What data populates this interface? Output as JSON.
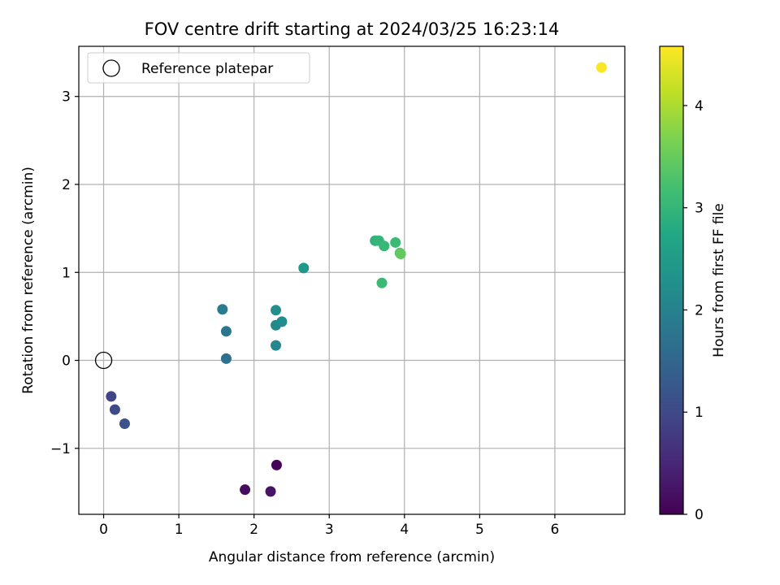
{
  "chart_data": {
    "type": "scatter",
    "title": "FOV centre drift starting at 2024/03/25 16:23:14",
    "xlabel": "Angular distance from reference (arcmin)",
    "ylabel": "Rotation from reference (arcmin)",
    "xlim": [
      -0.33,
      6.93
    ],
    "ylim": [
      -1.75,
      3.57
    ],
    "xticks": [
      0,
      1,
      2,
      3,
      4,
      5,
      6
    ],
    "yticks": [
      -1,
      0,
      1,
      2,
      3
    ],
    "grid": true,
    "legend": {
      "placement": "top-left",
      "entries": [
        "Reference platepar"
      ]
    },
    "reference_point": {
      "x": 0,
      "y": 0,
      "label": "Reference platepar"
    },
    "colorbar": {
      "label": "Hours from first FF file",
      "range": [
        0,
        4.58
      ],
      "ticks": [
        0,
        1,
        2,
        3,
        4
      ],
      "colormap": "viridis"
    },
    "points": [
      {
        "x": 2.3,
        "y": -1.19,
        "hours": 0.05
      },
      {
        "x": 1.88,
        "y": -1.47,
        "hours": 0.15
      },
      {
        "x": 2.22,
        "y": -1.49,
        "hours": 0.25
      },
      {
        "x": 0.1,
        "y": -0.41,
        "hours": 0.95
      },
      {
        "x": 0.15,
        "y": -0.56,
        "hours": 1.05
      },
      {
        "x": 0.28,
        "y": -0.72,
        "hours": 1.15
      },
      {
        "x": 1.63,
        "y": 0.02,
        "hours": 1.7
      },
      {
        "x": 1.63,
        "y": 0.33,
        "hours": 1.8
      },
      {
        "x": 1.58,
        "y": 0.58,
        "hours": 1.9
      },
      {
        "x": 2.29,
        "y": 0.17,
        "hours": 2.1
      },
      {
        "x": 2.29,
        "y": 0.4,
        "hours": 2.15
      },
      {
        "x": 2.37,
        "y": 0.44,
        "hours": 2.2
      },
      {
        "x": 2.29,
        "y": 0.57,
        "hours": 2.25
      },
      {
        "x": 2.66,
        "y": 1.05,
        "hours": 2.4
      },
      {
        "x": 3.61,
        "y": 1.36,
        "hours": 2.95
      },
      {
        "x": 3.66,
        "y": 1.36,
        "hours": 3.0
      },
      {
        "x": 3.73,
        "y": 1.3,
        "hours": 3.05
      },
      {
        "x": 3.88,
        "y": 1.34,
        "hours": 3.1
      },
      {
        "x": 3.7,
        "y": 0.88,
        "hours": 3.1
      },
      {
        "x": 3.94,
        "y": 1.22,
        "hours": 3.3
      },
      {
        "x": 3.95,
        "y": 1.21,
        "hours": 3.45
      },
      {
        "x": 6.62,
        "y": 3.33,
        "hours": 4.55
      }
    ]
  }
}
